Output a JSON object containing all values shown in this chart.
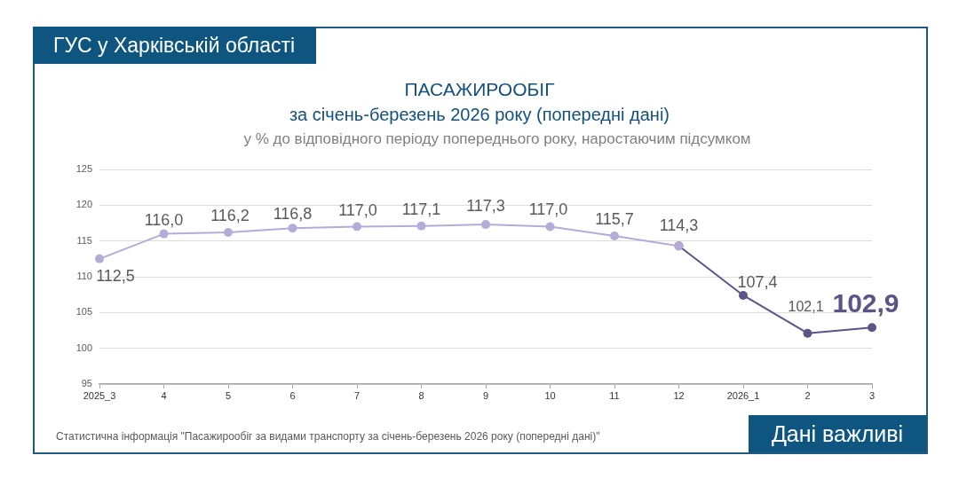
{
  "chart_data": {
    "type": "line",
    "title": "ПАСАЖИРООБІГ",
    "subtitle": "за січень-березень 2026 року (попередні дані)",
    "annotations": [
      "ГУС у Харківській області",
      "у % до відповідного періоду попереднього року, наростаючим підсумком",
      "Статистична інформація \"Пасажирообіг за видами транспорту за січень-березень 2026 року (попередні дані)\"",
      "Дані важливі"
    ],
    "categories": [
      "2025_3",
      "4",
      "5",
      "6",
      "7",
      "8",
      "9",
      "10",
      "11",
      "12",
      "2026_1",
      "2",
      "3"
    ],
    "series": [
      {
        "color": "#b4acd6",
        "values": [
          112.5,
          116.0,
          116.2,
          116.8,
          117.0,
          117.1,
          117.3,
          117.0,
          115.7,
          114.3,
          null,
          null,
          null
        ],
        "value_labels": [
          "112,5",
          "116,0",
          "116,2",
          "116,8",
          "117,0",
          "117,1",
          "117,3",
          "117,0",
          "115,7",
          "114,3",
          null,
          null,
          null
        ]
      },
      {
        "color": "#5c5486",
        "values": [
          null,
          null,
          null,
          null,
          null,
          null,
          null,
          null,
          null,
          114.3,
          107.4,
          102.1,
          102.9
        ],
        "value_labels": [
          null,
          null,
          null,
          null,
          null,
          null,
          null,
          null,
          null,
          null,
          "107,4",
          "102,1",
          "102,9"
        ]
      }
    ],
    "ylim": [
      95,
      125
    ],
    "yticks": [
      95,
      100,
      105,
      110,
      115,
      120,
      125
    ],
    "grid": "y",
    "marker": "circle",
    "line_style": "solid"
  }
}
